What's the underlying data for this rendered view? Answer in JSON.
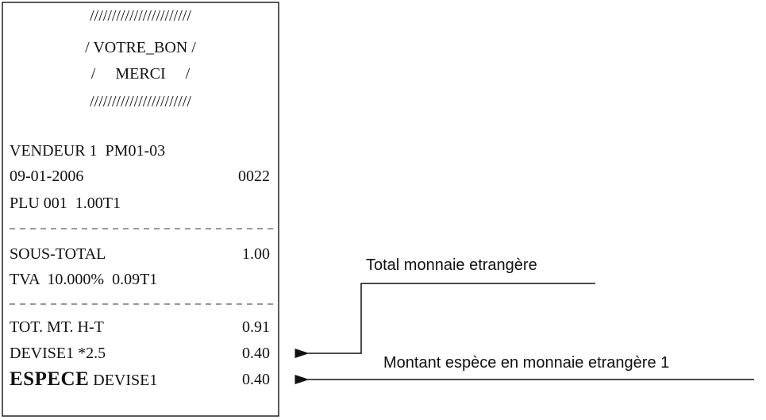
{
  "receipt": {
    "header": [
      "///////////////////////",
      "/ VOTRE_BON /",
      "/     MERCI     /",
      "///////////////////////"
    ],
    "lines": [
      {
        "left": "VENDEUR 1  PM01-03"
      },
      {
        "left": "09-01-2006",
        "right": "0022"
      },
      {
        "left": "PLU 001  1.00T1"
      },
      {
        "left": "SOUS-TOTAL",
        "right": "1.00"
      },
      {
        "left": "TVA  10.000%  0.09T1"
      },
      {
        "left": "TOT. MT. H-T",
        "right": "0.91"
      },
      {
        "left": "DEVISE1 *2.5",
        "right": "0.40"
      },
      {
        "emphasis": "ESPECE",
        "left": "DEVISE1",
        "right": "0.40"
      }
    ]
  },
  "annotations": [
    "Total monnaie etrangère",
    "Montant espèce en monnaie etrangère 1"
  ]
}
